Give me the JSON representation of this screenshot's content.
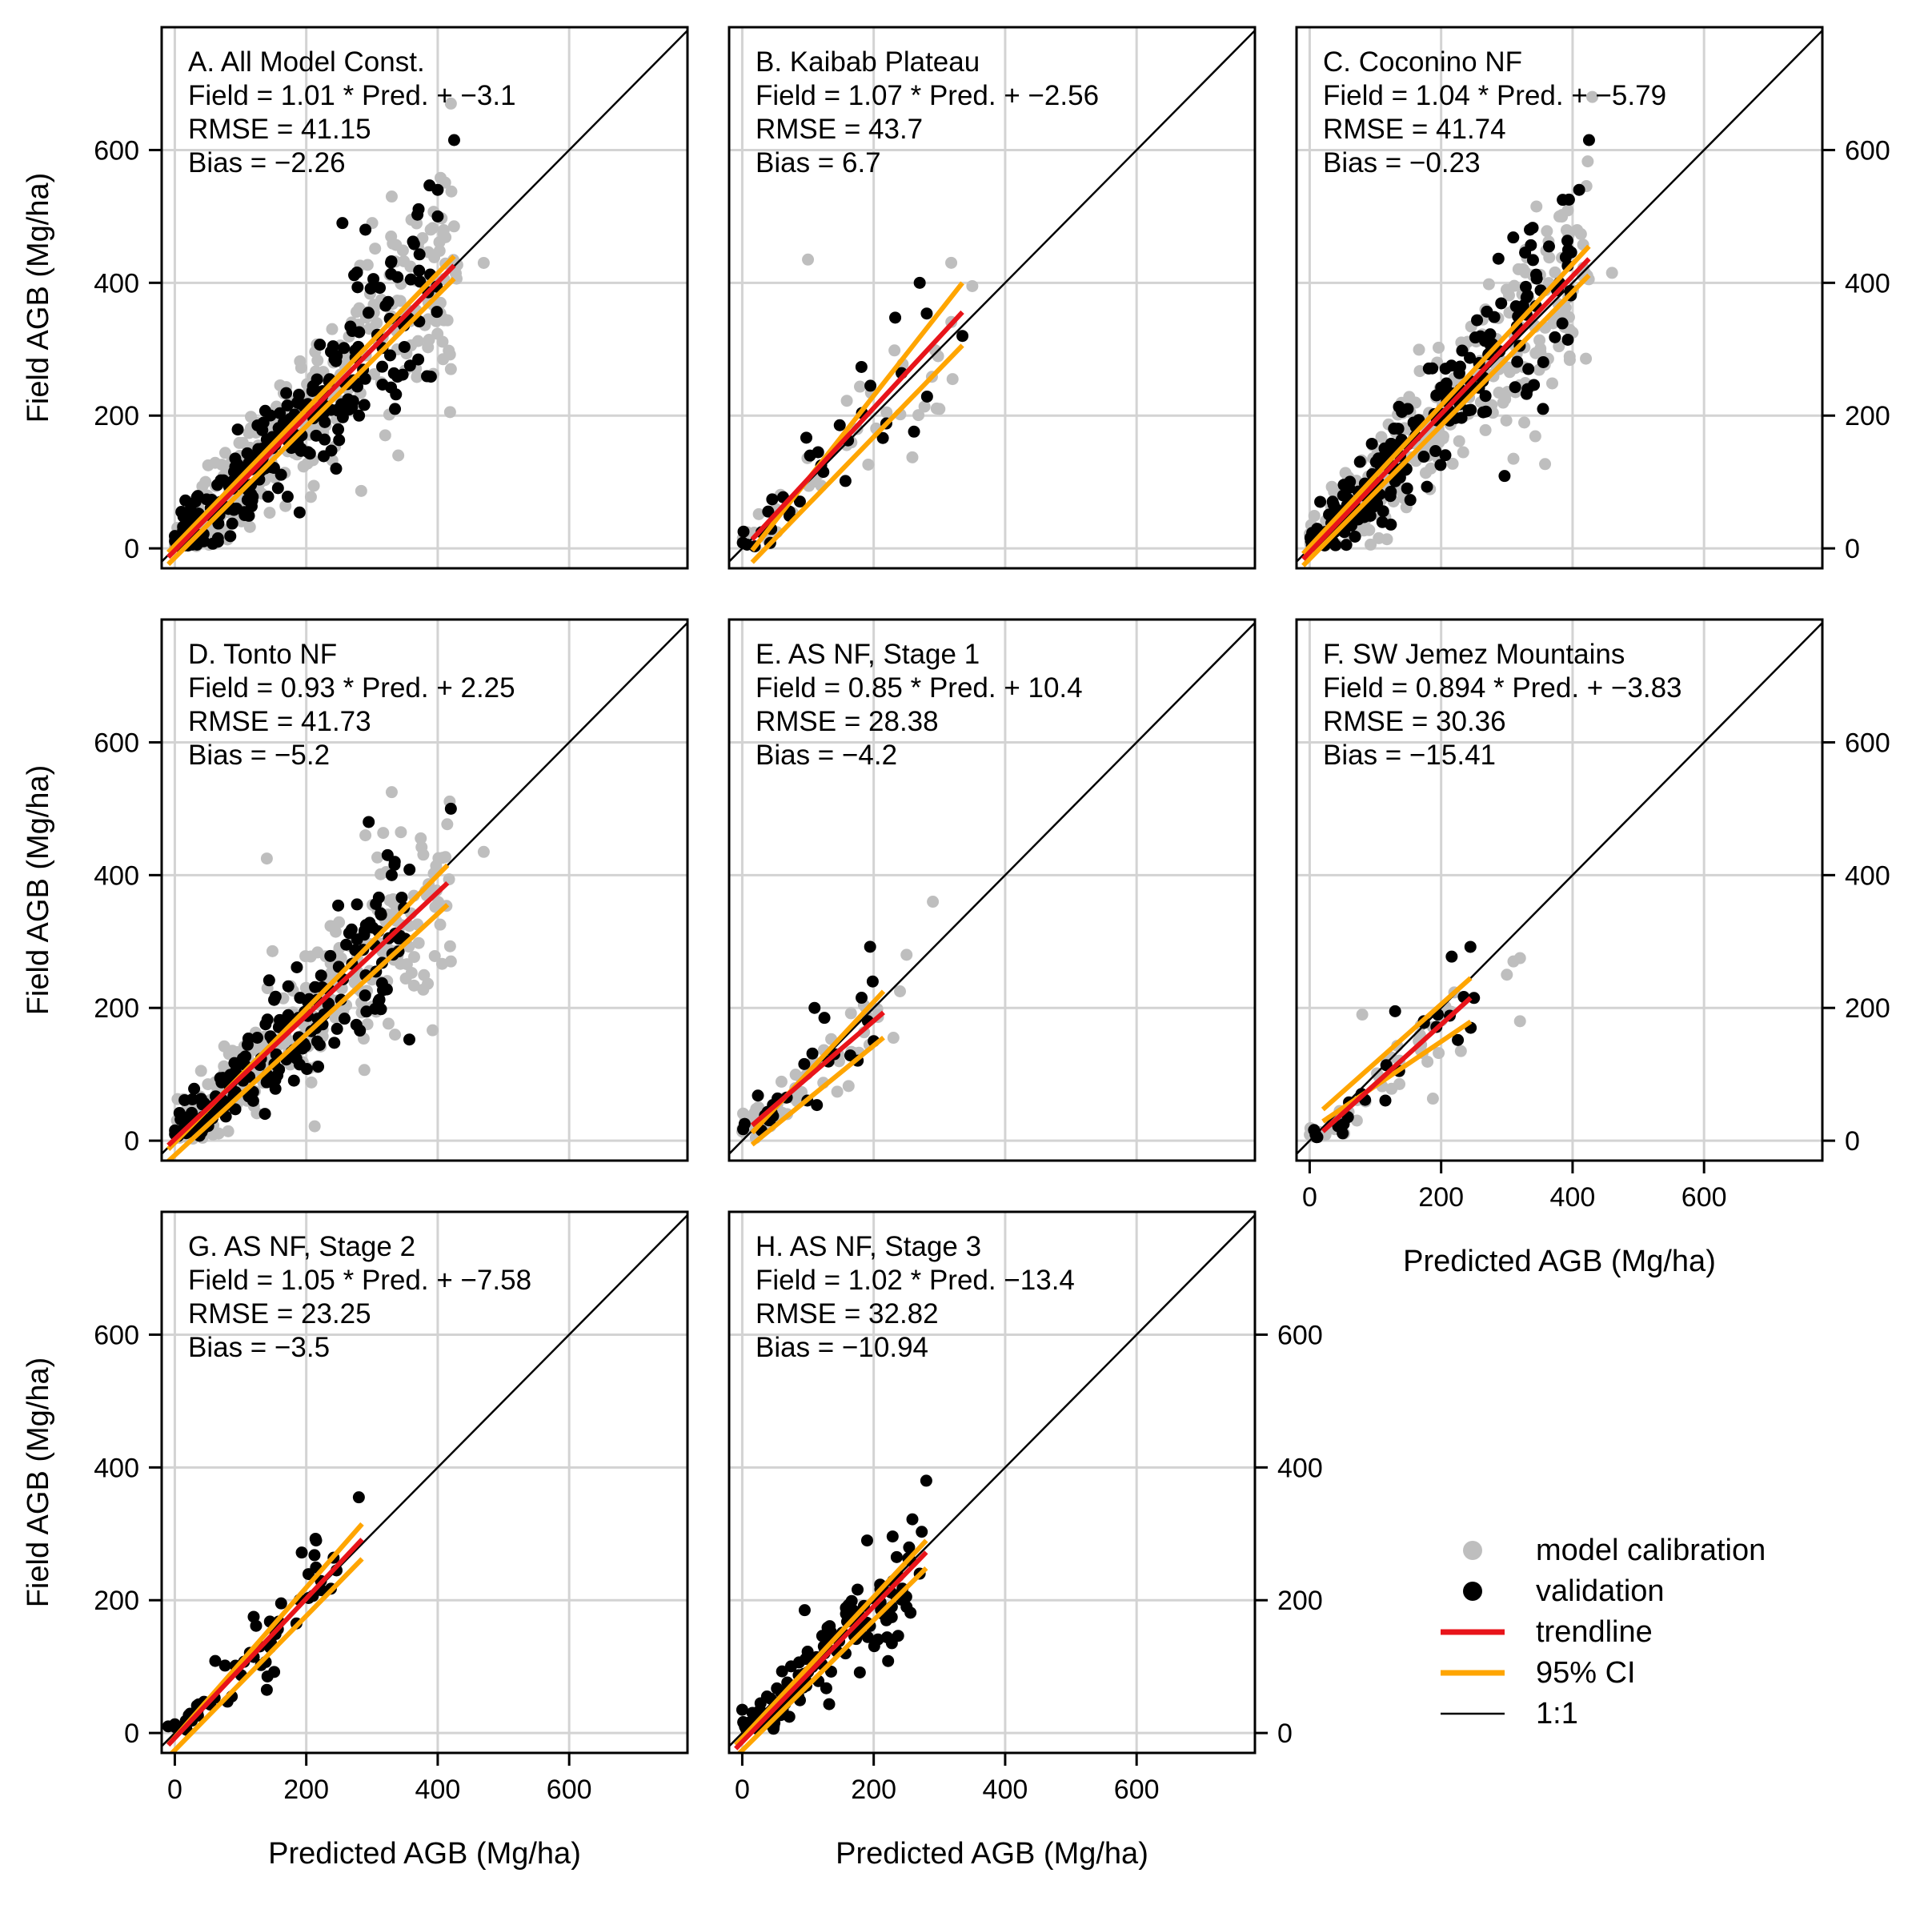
{
  "figure": {
    "xlabel": "Predicted AGB (Mg/ha)",
    "ylabel": "Field AGB (Mg/ha)",
    "xticks": [
      0,
      200,
      400,
      600
    ],
    "yticks": [
      0,
      200,
      400,
      600
    ]
  },
  "legend": {
    "items": [
      {
        "label": "model calibration",
        "kind": "point",
        "color": "#bebebe"
      },
      {
        "label": "validation",
        "kind": "point",
        "color": "#000000"
      },
      {
        "label": "trendline",
        "kind": "line",
        "color": "#e8141a"
      },
      {
        "label": "95% CI",
        "kind": "line",
        "color": "#ffa500"
      },
      {
        "label": "1:1",
        "kind": "thin",
        "color": "#000000"
      }
    ]
  },
  "chart_data": [
    {
      "id": "A",
      "type": "scatter",
      "title": "A. All Model Const.",
      "equation": "Field = 1.01 * Pred. + −3.1",
      "rmse": "RMSE = 41.15",
      "bias": "Bias = −2.26",
      "xlim": [
        -20,
        780
      ],
      "ylim": [
        -30,
        785
      ],
      "slope": 1.01,
      "intercept": -3.1,
      "range": [
        -10,
        425
      ],
      "ci_spread": 0.1,
      "ci_lo": [
        -10,
        -18
      ],
      "ci_hi": [
        425,
        440
      ],
      "calibration": {
        "n": 400,
        "xmax": 430,
        "sd": 52,
        "seed": 11
      },
      "validation": {
        "n": 260,
        "xmax": 400,
        "sd": 45,
        "seed": 12
      },
      "extras_cal": [
        [
          420,
          670
        ],
        [
          330,
          530
        ],
        [
          360,
          495
        ],
        [
          470,
          430
        ],
        [
          420,
          270
        ],
        [
          340,
          140
        ]
      ],
      "extras_val": [
        [
          425,
          615
        ],
        [
          400,
          540
        ],
        [
          400,
          500
        ],
        [
          290,
          480
        ],
        [
          335,
          210
        ],
        [
          255,
          490
        ]
      ]
    },
    {
      "id": "B",
      "type": "scatter",
      "title": "B. Kaibab Plateau",
      "equation": "Field = 1.07 * Pred. + −2.56",
      "rmse": "RMSE = 43.7",
      "bias": "Bias = 6.7",
      "xlim": [
        -20,
        780
      ],
      "ylim": [
        -30,
        785
      ],
      "slope": 1.07,
      "intercept": -2.56,
      "range": [
        15,
        335
      ],
      "ci_spread": 0.25,
      "ci_lo": [
        15,
        -15
      ],
      "ci_hi": [
        335,
        400
      ],
      "calibration": {
        "n": 38,
        "xmax": 330,
        "sd": 45,
        "seed": 21
      },
      "validation": {
        "n": 30,
        "xmax": 330,
        "sd": 40,
        "seed": 22
      },
      "extras_cal": [
        [
          100,
          435
        ],
        [
          350,
          395
        ],
        [
          300,
          210
        ],
        [
          320,
          255
        ]
      ],
      "extras_val": [
        [
          270,
          400
        ],
        [
          335,
          320
        ],
        [
          195,
          245
        ]
      ]
    },
    {
      "id": "C",
      "type": "scatter",
      "title": "C. Coconino NF",
      "equation": "Field = 1.04 * Pred. + −5.79",
      "rmse": "RMSE = 41.74",
      "bias": "Bias = −0.23",
      "xlim": [
        -20,
        780
      ],
      "ylim": [
        -30,
        785
      ],
      "slope": 1.04,
      "intercept": -5.79,
      "range": [
        -10,
        425
      ],
      "ci_spread": 0.1,
      "ci_lo": [
        -10,
        -20
      ],
      "ci_hi": [
        425,
        455
      ],
      "calibration": {
        "n": 330,
        "xmax": 430,
        "sd": 50,
        "seed": 31
      },
      "validation": {
        "n": 220,
        "xmax": 400,
        "sd": 45,
        "seed": 32
      },
      "extras_cal": [
        [
          430,
          680
        ],
        [
          345,
          515
        ],
        [
          380,
          500
        ],
        [
          460,
          415
        ],
        [
          400,
          325
        ],
        [
          310,
          135
        ]
      ],
      "extras_val": [
        [
          425,
          615
        ],
        [
          410,
          540
        ],
        [
          385,
          525
        ],
        [
          335,
          480
        ],
        [
          355,
          210
        ]
      ]
    },
    {
      "id": "D",
      "type": "scatter",
      "title": "D. Tonto NF",
      "equation": "Field = 0.93 * Pred. + 2.25",
      "rmse": "RMSE = 41.73",
      "bias": "Bias = −5.2",
      "xlim": [
        -20,
        780
      ],
      "ylim": [
        -30,
        785
      ],
      "slope": 0.93,
      "intercept": 2.25,
      "range": [
        -10,
        415
      ],
      "ci_spread": 0.12,
      "ci_lo": [
        -10,
        -25
      ],
      "ci_hi": [
        415,
        415
      ],
      "calibration": {
        "n": 320,
        "xmax": 420,
        "sd": 52,
        "seed": 41
      },
      "validation": {
        "n": 190,
        "xmax": 360,
        "sd": 45,
        "seed": 42
      },
      "extras_cal": [
        [
          330,
          525
        ],
        [
          290,
          460
        ],
        [
          140,
          425
        ],
        [
          420,
          270
        ],
        [
          470,
          435
        ]
      ],
      "extras_val": [
        [
          420,
          500
        ],
        [
          295,
          480
        ],
        [
          330,
          400
        ],
        [
          310,
          210
        ]
      ]
    },
    {
      "id": "E",
      "type": "scatter",
      "title": "E. AS NF, Stage 1",
      "equation": "Field = 0.85 * Pred. + 10.4",
      "rmse": "RMSE = 28.38",
      "bias": "Bias = −4.2",
      "xlim": [
        -20,
        780
      ],
      "ylim": [
        -30,
        785
      ],
      "slope": 0.85,
      "intercept": 10.4,
      "range": [
        15,
        215
      ],
      "ci_spread": 0.2,
      "ci_lo": [
        15,
        0
      ],
      "ci_hi": [
        215,
        225
      ],
      "calibration": {
        "n": 55,
        "xmax": 225,
        "sd": 22,
        "seed": 51
      },
      "validation": {
        "n": 25,
        "xmax": 200,
        "sd": 25,
        "seed": 52
      },
      "extras_cal": [
        [
          290,
          360
        ],
        [
          250,
          280
        ],
        [
          240,
          225
        ],
        [
          230,
          155
        ]
      ],
      "extras_val": [
        [
          110,
          200
        ],
        [
          125,
          185
        ],
        [
          200,
          150
        ]
      ]
    },
    {
      "id": "F",
      "type": "scatter",
      "title": "F. SW Jemez Mountains",
      "equation": "Field = 0.894 * Pred. + −3.83",
      "rmse": "RMSE = 30.36",
      "bias": "Bias = −15.41",
      "xlim": [
        -20,
        780
      ],
      "ylim": [
        -30,
        785
      ],
      "slope": 0.894,
      "intercept": -3.83,
      "range": [
        20,
        245
      ],
      "ci_spread": 0.2,
      "ci_lo": [
        20,
        35
      ],
      "ci_hi": [
        245,
        245
      ],
      "calibration": {
        "n": 40,
        "xmax": 250,
        "sd": 25,
        "seed": 61
      },
      "validation": {
        "n": 22,
        "xmax": 250,
        "sd": 25,
        "seed": 62
      },
      "extras_cal": [
        [
          320,
          275
        ],
        [
          310,
          270
        ],
        [
          300,
          250
        ],
        [
          320,
          180
        ],
        [
          80,
          190
        ],
        [
          230,
          135
        ]
      ],
      "extras_val": [
        [
          130,
          195
        ],
        [
          195,
          190
        ],
        [
          250,
          215
        ],
        [
          245,
          170
        ]
      ]
    },
    {
      "id": "G",
      "type": "scatter",
      "title": "G. AS NF, Stage 2",
      "equation": "Field = 1.05 * Pred. + −7.58",
      "rmse": "RMSE = 23.25",
      "bias": "Bias = −3.5",
      "xlim": [
        -20,
        780
      ],
      "ylim": [
        -30,
        785
      ],
      "slope": 1.05,
      "intercept": -7.58,
      "range": [
        -10,
        285
      ],
      "ci_spread": 0.12,
      "ci_lo": [
        -10,
        -30
      ],
      "ci_hi": [
        285,
        315
      ],
      "calibration": {
        "n": 0,
        "xmax": 280,
        "sd": 20,
        "seed": 71
      },
      "validation": {
        "n": 55,
        "xmax": 250,
        "sd": 18,
        "seed": 72
      },
      "extras_cal": [],
      "extras_val": [
        [
          280,
          355
        ],
        [
          215,
          290
        ],
        [
          120,
          175
        ],
        [
          140,
          65
        ],
        [
          185,
          165
        ],
        [
          -10,
          10
        ]
      ]
    },
    {
      "id": "H",
      "type": "scatter",
      "title": "H. AS NF, Stage 3",
      "equation": "Field = 1.02 * Pred. −13.4",
      "rmse": "RMSE = 32.82",
      "bias": "Bias = −10.94",
      "xlim": [
        -20,
        780
      ],
      "ylim": [
        -30,
        785
      ],
      "slope": 1.02,
      "intercept": -13.4,
      "range": [
        -10,
        280
      ],
      "ci_spread": 0.1,
      "ci_lo": [
        -10,
        -30
      ],
      "ci_hi": [
        280,
        290
      ],
      "calibration": {
        "n": 0,
        "xmax": 280,
        "sd": 25,
        "seed": 81
      },
      "validation": {
        "n": 130,
        "xmax": 275,
        "sd": 28,
        "seed": 82
      },
      "extras_cal": [],
      "extras_val": [
        [
          280,
          380
        ],
        [
          190,
          290
        ],
        [
          235,
          265
        ],
        [
          270,
          240
        ],
        [
          250,
          190
        ],
        [
          95,
          185
        ],
        [
          0,
          35
        ]
      ]
    }
  ]
}
